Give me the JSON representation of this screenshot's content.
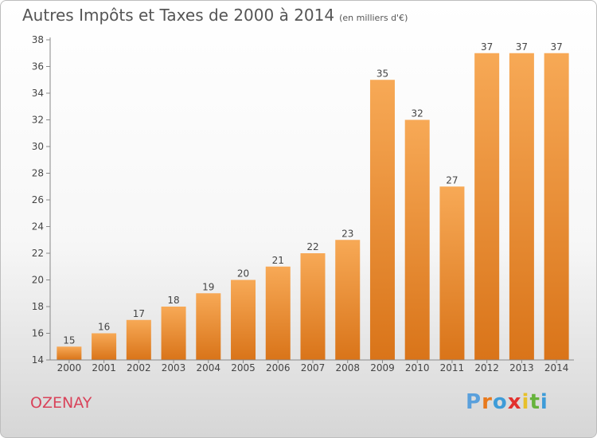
{
  "header": {
    "title": "Autres Impôts et Taxes de 2000 à 2014",
    "subtitle": "(en milliers d'€)"
  },
  "footer": {
    "commune": "OZENAY",
    "brand": "Proxiti"
  },
  "colors": {
    "bar_light": "#f7a956",
    "bar_dark": "#d97419",
    "commune_text": "#d9435a",
    "brand_letters": [
      "#5aa0dc",
      "#e8791c",
      "#3e9cd8",
      "#e2312e",
      "#e7c02a",
      "#66b33c",
      "#3e9cd8"
    ]
  },
  "chart_data": {
    "type": "bar",
    "title": "Autres Impôts et Taxes de 2000 à 2014",
    "subtitle": "(en milliers d'€)",
    "categories": [
      "2000",
      "2001",
      "2002",
      "2003",
      "2004",
      "2005",
      "2006",
      "2007",
      "2008",
      "2009",
      "2010",
      "2011",
      "2012",
      "2013",
      "2014"
    ],
    "values": [
      15,
      16,
      17,
      18,
      19,
      20,
      21,
      22,
      23,
      35,
      32,
      27,
      37,
      37,
      37
    ],
    "ylim": [
      14,
      38
    ],
    "yticks": [
      14,
      16,
      18,
      20,
      22,
      24,
      26,
      28,
      30,
      32,
      34,
      36,
      38
    ],
    "xlabel": "",
    "ylabel": "",
    "grid": false,
    "data_labels": true
  }
}
